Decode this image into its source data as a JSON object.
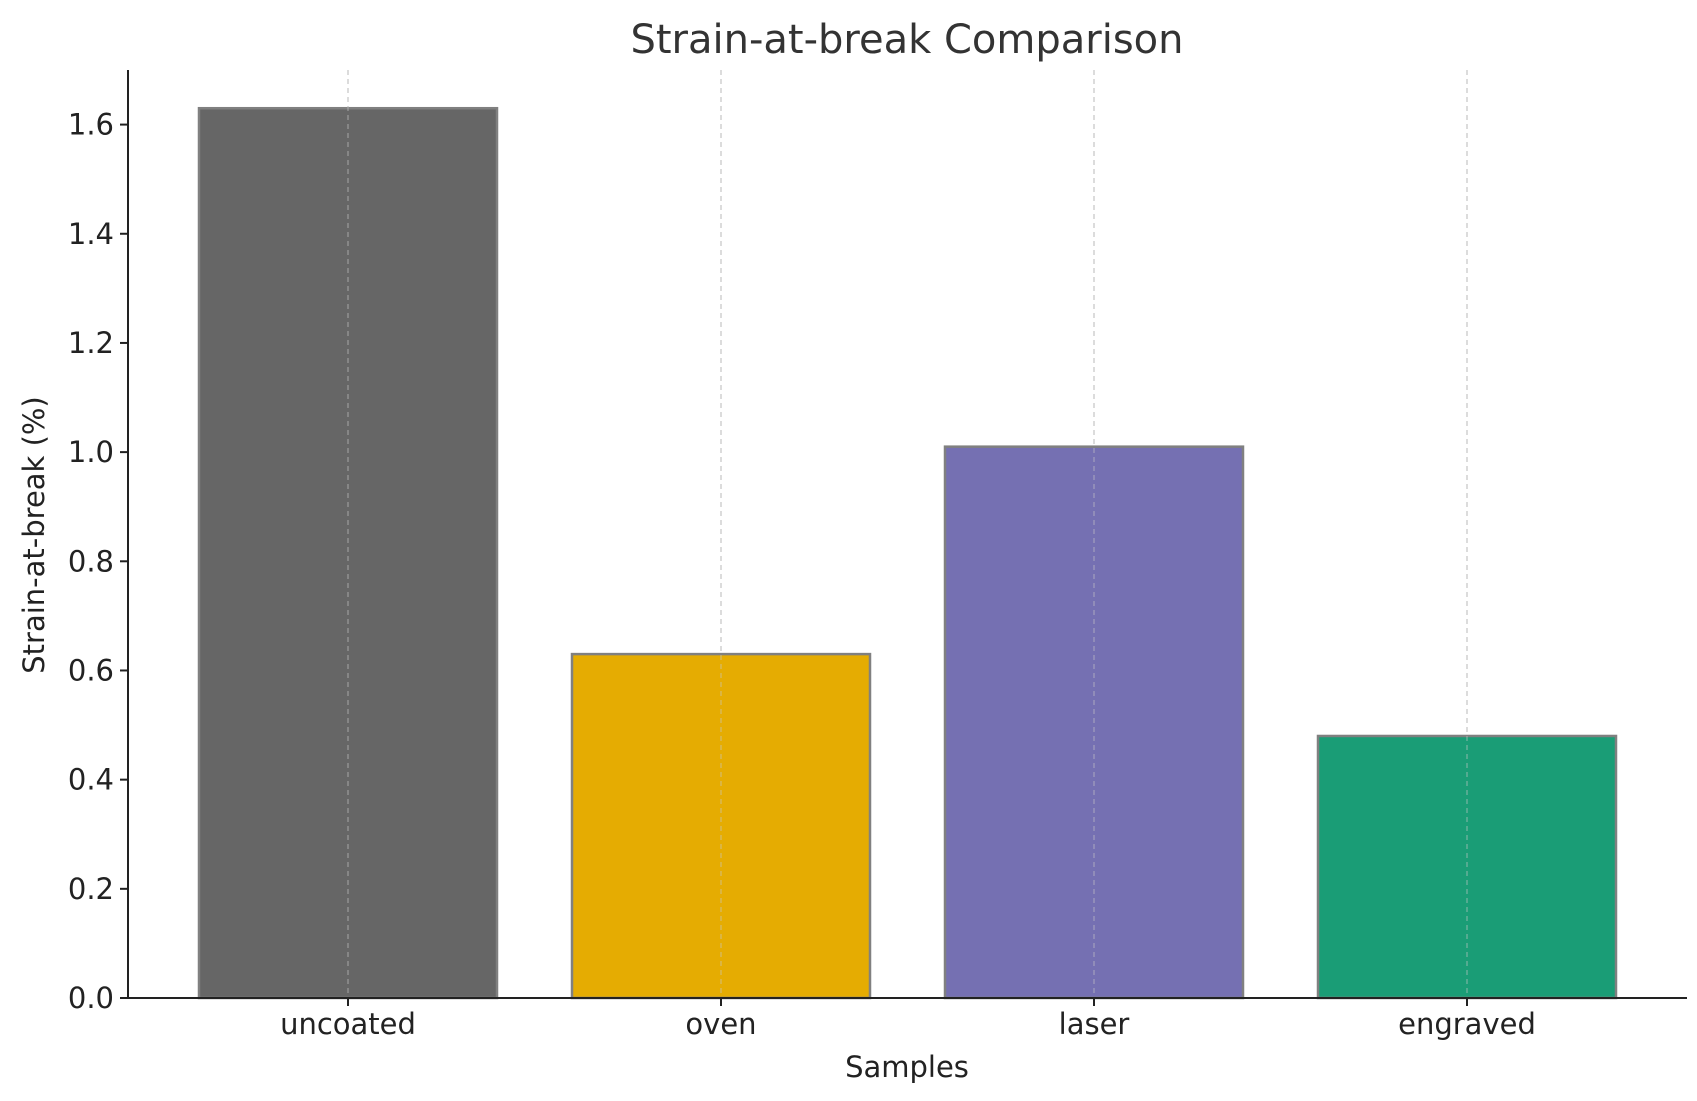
{
  "chart_data": {
    "type": "bar",
    "title": "Strain-at-break Comparison",
    "xlabel": "Samples",
    "ylabel": "Strain-at-break (%)",
    "categories": [
      "uncoated",
      "oven",
      "laser",
      "engraved"
    ],
    "values": [
      1.63,
      0.63,
      1.01,
      0.48
    ],
    "colors": [
      "#666666",
      "#e5ac02",
      "#7570b2",
      "#1a9d76"
    ],
    "edge_color": "#808080",
    "ylim": [
      0,
      1.7
    ],
    "yticks": [
      0.0,
      0.2,
      0.4,
      0.6,
      0.8,
      1.0,
      1.2,
      1.4,
      1.6
    ],
    "ytick_labels": [
      "0.0",
      "0.2",
      "0.4",
      "0.6",
      "0.8",
      "1.0",
      "1.2",
      "1.4",
      "1.6"
    ],
    "grid": "x-dashed",
    "legend": "none"
  }
}
